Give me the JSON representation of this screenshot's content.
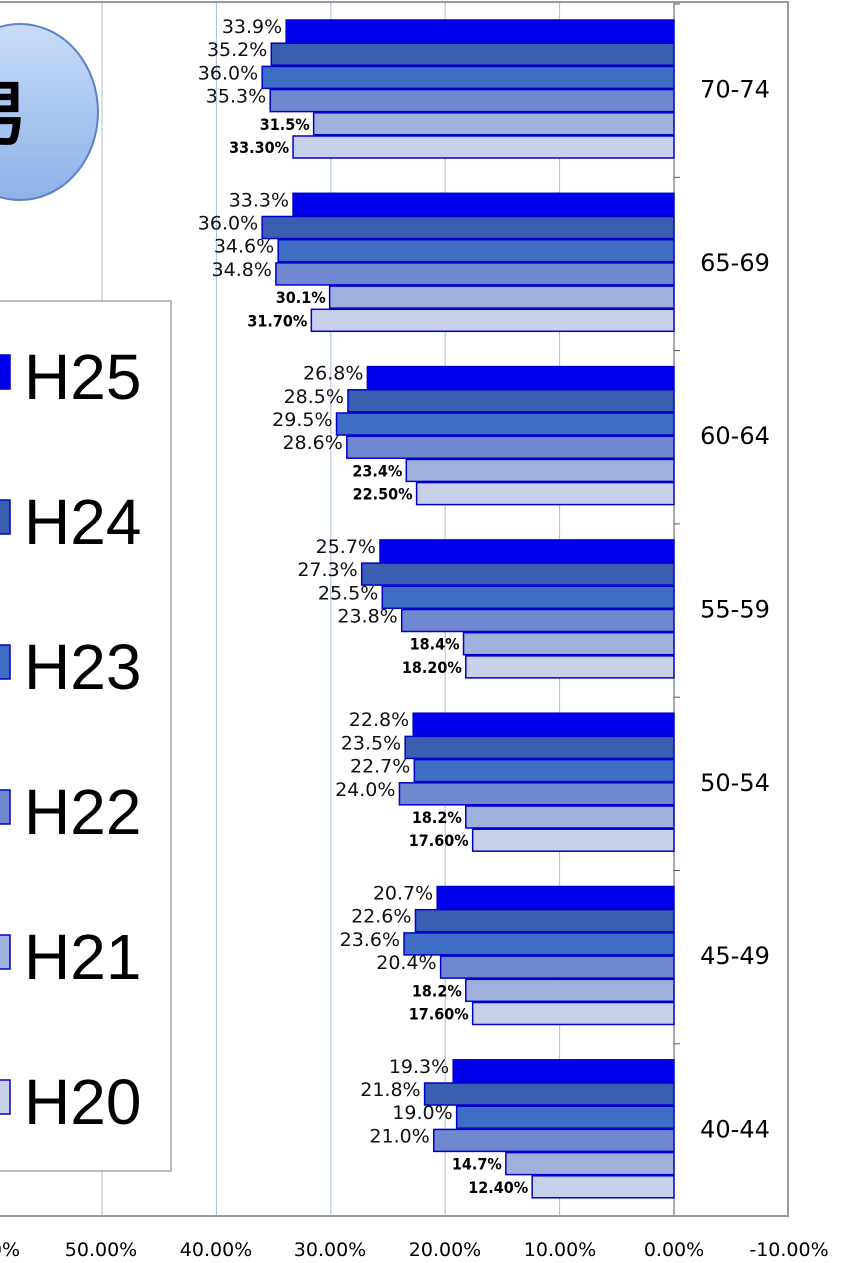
{
  "chart_data": {
    "type": "bar",
    "orientation": "horizontal",
    "categories": [
      "70-74",
      "65-69",
      "60-64",
      "55-59",
      "50-54",
      "45-49",
      "40-44"
    ],
    "series": [
      {
        "name": "H25",
        "color": "#0000ee",
        "values": [
          33.9,
          33.3,
          26.8,
          25.7,
          22.8,
          20.7,
          19.3
        ],
        "labels": [
          "33.9%",
          "33.3%",
          "26.8%",
          "25.7%",
          "22.8%",
          "20.7%",
          "19.3%"
        ]
      },
      {
        "name": "H24",
        "color": "#3a5fb0",
        "values": [
          35.2,
          36.0,
          28.5,
          27.3,
          23.5,
          22.6,
          21.8
        ],
        "labels": [
          "35.2%",
          "36.0%",
          "28.5%",
          "27.3%",
          "23.5%",
          "22.6%",
          "21.8%"
        ]
      },
      {
        "name": "H23",
        "color": "#3d6dc4",
        "values": [
          36.0,
          34.6,
          29.5,
          25.5,
          22.7,
          23.6,
          19.0
        ],
        "labels": [
          "36.0%",
          "34.6%",
          "29.5%",
          "25.5%",
          "22.7%",
          "23.6%",
          "19.0%"
        ]
      },
      {
        "name": "H22",
        "color": "#6f88cf",
        "values": [
          35.3,
          34.8,
          28.6,
          23.8,
          24.0,
          20.4,
          21.0
        ],
        "labels": [
          "35.3%",
          "34.8%",
          "28.6%",
          "23.8%",
          "24.0%",
          "20.4%",
          "21.0%"
        ]
      },
      {
        "name": "H21",
        "color": "#a0b0dd",
        "values": [
          31.5,
          30.1,
          23.4,
          18.4,
          18.2,
          18.2,
          14.7
        ],
        "labels": [
          "31.5%",
          "30.1%",
          "23.4%",
          "18.4%",
          "18.2%",
          "18.2%",
          "14.7%"
        ]
      },
      {
        "name": "H20",
        "color": "#c8d0ea",
        "values": [
          33.3,
          31.7,
          22.5,
          18.2,
          17.6,
          17.6,
          12.4
        ],
        "labels": [
          "33.30%",
          "31.70%",
          "22.50%",
          "18.20%",
          "17.60%",
          "17.60%",
          "12.40%"
        ]
      }
    ],
    "x_ticks": [
      "0%",
      "50.00%",
      "40.00%",
      "30.00%",
      "20.00%",
      "10.00%",
      "0.00%",
      "-10.00%"
    ],
    "x_reversed": true,
    "xlim": [
      -10,
      60
    ],
    "grid": true,
    "legend_position": "left",
    "title_fragment": "男"
  }
}
